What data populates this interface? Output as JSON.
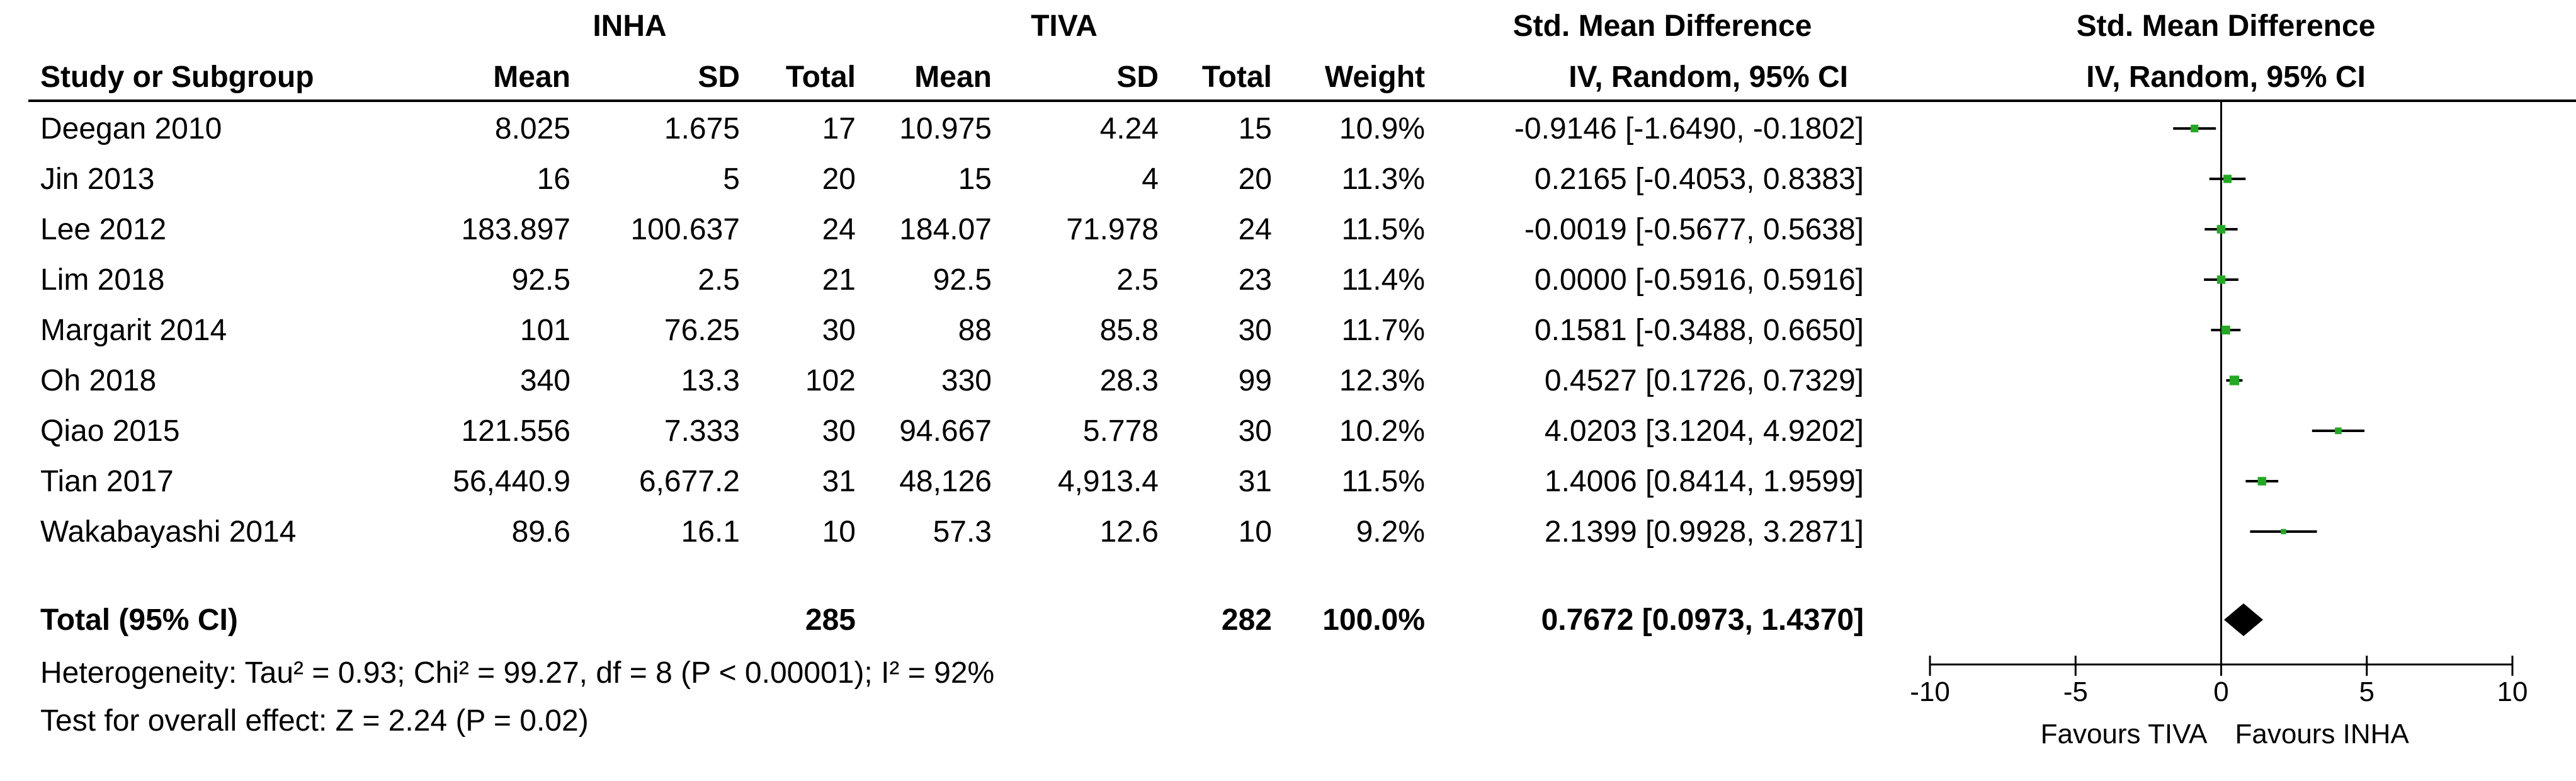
{
  "header": {
    "group_exp": "INHA",
    "group_ctrl": "TIVA",
    "effect_title": "Std. Mean Difference",
    "effect_method": "IV, Random, 95% CI",
    "plot_title": "Std. Mean Difference",
    "plot_method": "IV, Random, 95% CI",
    "col_study": "Study or Subgroup",
    "col_mean_exp": "Mean",
    "col_sd_exp": "SD",
    "col_total_exp": "Total",
    "col_mean_ctrl": "Mean",
    "col_sd_ctrl": "SD",
    "col_total_ctrl": "Total",
    "col_weight": "Weight"
  },
  "studies": [
    {
      "name": "Deegan 2010",
      "mean_exp": "8.025",
      "sd_exp": "1.675",
      "total_exp": "17",
      "mean_ctrl": "10.975",
      "sd_ctrl": "4.24",
      "total_ctrl": "15",
      "weight": "10.9%",
      "ci_text": "-0.9146 [-1.6490, -0.1802]"
    },
    {
      "name": "Jin 2013",
      "mean_exp": "16",
      "sd_exp": "5",
      "total_exp": "20",
      "mean_ctrl": "15",
      "sd_ctrl": "4",
      "total_ctrl": "20",
      "weight": "11.3%",
      "ci_text": "0.2165 [-0.4053, 0.8383]"
    },
    {
      "name": "Lee 2012",
      "mean_exp": "183.897",
      "sd_exp": "100.637",
      "total_exp": "24",
      "mean_ctrl": "184.07",
      "sd_ctrl": "71.978",
      "total_ctrl": "24",
      "weight": "11.5%",
      "ci_text": "-0.0019 [-0.5677, 0.5638]"
    },
    {
      "name": "Lim 2018",
      "mean_exp": "92.5",
      "sd_exp": "2.5",
      "total_exp": "21",
      "mean_ctrl": "92.5",
      "sd_ctrl": "2.5",
      "total_ctrl": "23",
      "weight": "11.4%",
      "ci_text": "0.0000 [-0.5916, 0.5916]"
    },
    {
      "name": "Margarit 2014",
      "mean_exp": "101",
      "sd_exp": "76.25",
      "total_exp": "30",
      "mean_ctrl": "88",
      "sd_ctrl": "85.8",
      "total_ctrl": "30",
      "weight": "11.7%",
      "ci_text": "0.1581 [-0.3488, 0.6650]"
    },
    {
      "name": "Oh 2018",
      "mean_exp": "340",
      "sd_exp": "13.3",
      "total_exp": "102",
      "mean_ctrl": "330",
      "sd_ctrl": "28.3",
      "total_ctrl": "99",
      "weight": "12.3%",
      "ci_text": "0.4527 [0.1726, 0.7329]"
    },
    {
      "name": "Qiao 2015",
      "mean_exp": "121.556",
      "sd_exp": "7.333",
      "total_exp": "30",
      "mean_ctrl": "94.667",
      "sd_ctrl": "5.778",
      "total_ctrl": "30",
      "weight": "10.2%",
      "ci_text": "4.0203 [3.1204, 4.9202]"
    },
    {
      "name": "Tian 2017",
      "mean_exp": "56,440.9",
      "sd_exp": "6,677.2",
      "total_exp": "31",
      "mean_ctrl": "48,126",
      "sd_ctrl": "4,913.4",
      "total_ctrl": "31",
      "weight": "11.5%",
      "ci_text": "1.4006 [0.8414, 1.9599]"
    },
    {
      "name": "Wakabayashi 2014",
      "mean_exp": "89.6",
      "sd_exp": "16.1",
      "total_exp": "10",
      "mean_ctrl": "57.3",
      "sd_ctrl": "12.6",
      "total_ctrl": "10",
      "weight": "9.2%",
      "ci_text": "2.1399 [0.9928, 3.2871]"
    }
  ],
  "total": {
    "label": "Total (95% CI)",
    "total_exp": "285",
    "total_ctrl": "282",
    "weight": "100.0%",
    "ci_text": "0.7672 [0.0973, 1.4370]"
  },
  "footer": {
    "heterogeneity": "Heterogeneity: Tau² = 0.93; Chi² = 99.27, df = 8 (P < 0.00001); I² = 92%",
    "overall_effect": "Test for overall effect: Z = 2.24 (P = 0.02)"
  },
  "colors": {
    "square": "#22aa22",
    "diamond": "#000000",
    "lines": "#000000"
  },
  "chart_data": {
    "type": "forest",
    "title": "Std. Mean Difference",
    "subtitle": "IV, Random, 95% CI",
    "xlim": [
      -10,
      10
    ],
    "xticks": [
      -10,
      -5,
      0,
      5,
      10
    ],
    "xtick_labels": [
      "-10",
      "-5",
      "0",
      "5",
      "10"
    ],
    "favours_left": "Favours TIVA",
    "favours_right": "Favours INHA",
    "points": [
      {
        "study": "Deegan 2010",
        "smd": -0.9146,
        "lo": -1.649,
        "hi": -0.1802,
        "weight": 10.9
      },
      {
        "study": "Jin 2013",
        "smd": 0.2165,
        "lo": -0.4053,
        "hi": 0.8383,
        "weight": 11.3
      },
      {
        "study": "Lee 2012",
        "smd": -0.0019,
        "lo": -0.5677,
        "hi": 0.5638,
        "weight": 11.5
      },
      {
        "study": "Lim 2018",
        "smd": 0.0,
        "lo": -0.5916,
        "hi": 0.5916,
        "weight": 11.4
      },
      {
        "study": "Margarit 2014",
        "smd": 0.1581,
        "lo": -0.3488,
        "hi": 0.665,
        "weight": 11.7
      },
      {
        "study": "Oh 2018",
        "smd": 0.4527,
        "lo": 0.1726,
        "hi": 0.7329,
        "weight": 12.3
      },
      {
        "study": "Qiao 2015",
        "smd": 4.0203,
        "lo": 3.1204,
        "hi": 4.9202,
        "weight": 10.2
      },
      {
        "study": "Tian 2017",
        "smd": 1.4006,
        "lo": 0.8414,
        "hi": 1.9599,
        "weight": 11.5
      },
      {
        "study": "Wakabayashi 2014",
        "smd": 2.1399,
        "lo": 0.9928,
        "hi": 3.2871,
        "weight": 9.2
      }
    ],
    "pooled": {
      "smd": 0.7672,
      "lo": 0.0973,
      "hi": 1.437
    }
  }
}
